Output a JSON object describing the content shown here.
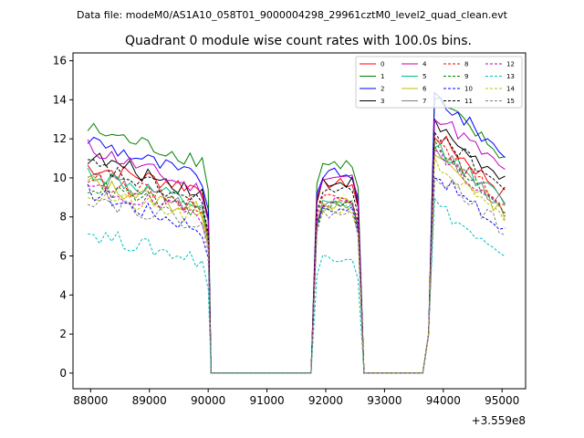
{
  "chart_data": {
    "type": "line",
    "suptitle": "Data file: modeM0/AS1A10_058T01_9000004298_29961cztM0_level2_quad_clean.evt",
    "title": "Quadrant 0 module wise count rates with 100.0s bins.",
    "xlabel": "",
    "ylabel": "",
    "x_offset_label": "+3.559e8",
    "xlim": [
      87700,
      95400
    ],
    "ylim": [
      -0.8,
      16.4
    ],
    "x_ticks": [
      88000,
      89000,
      90000,
      91000,
      92000,
      93000,
      94000,
      95000
    ],
    "x_tick_labels": [
      "88000",
      "89000",
      "90000",
      "91000",
      "92000",
      "93000",
      "94000",
      "95000"
    ],
    "y_ticks": [
      0,
      2,
      4,
      6,
      8,
      10,
      12,
      14,
      16
    ],
    "y_tick_labels": [
      "0",
      "2",
      "4",
      "6",
      "8",
      "10",
      "12",
      "14",
      "16"
    ],
    "legend_position": "top-right",
    "segments": [
      {
        "start": 87950,
        "end": 90000,
        "n": 21
      },
      {
        "start": 90050,
        "end": 91750,
        "n": 18,
        "zero": true
      },
      {
        "start": 91850,
        "end": 92550,
        "n": 8
      },
      {
        "start": 92650,
        "end": 93650,
        "n": 11,
        "zero": true
      },
      {
        "start": 93750,
        "end": 95050,
        "n": 14
      }
    ],
    "series": [
      {
        "name": "0",
        "color": "#ff0000",
        "dashed": false,
        "levels": [
          10.6,
          9.4,
          9.7,
          12.5
        ]
      },
      {
        "name": "1",
        "color": "#008000",
        "dashed": false,
        "levels": [
          12.5,
          10.8,
          10.7,
          14.3
        ]
      },
      {
        "name": "2",
        "color": "#0000ff",
        "dashed": false,
        "levels": [
          12.0,
          9.8,
          10.2,
          14.5
        ]
      },
      {
        "name": "3",
        "color": "#000000",
        "dashed": false,
        "levels": [
          11.1,
          9.2,
          9.8,
          13.0
        ]
      },
      {
        "name": "4",
        "color": "#bf00bf",
        "dashed": false,
        "levels": [
          11.6,
          9.2,
          10.0,
          13.6
        ]
      },
      {
        "name": "5",
        "color": "#00bf80",
        "dashed": false,
        "levels": [
          10.3,
          8.4,
          8.6,
          12.0
        ]
      },
      {
        "name": "6",
        "color": "#bfbf00",
        "dashed": false,
        "levels": [
          9.8,
          8.2,
          8.7,
          11.5
        ]
      },
      {
        "name": "7",
        "color": "#808080",
        "dashed": false,
        "levels": [
          10.1,
          8.3,
          8.8,
          11.8
        ]
      },
      {
        "name": "8",
        "color": "#ff0000",
        "dashed": true,
        "levels": [
          10.0,
          8.5,
          9.0,
          12.0
        ]
      },
      {
        "name": "9",
        "color": "#008000",
        "dashed": true,
        "levels": [
          9.6,
          8.2,
          8.6,
          11.8
        ]
      },
      {
        "name": "10",
        "color": "#0000ff",
        "dashed": true,
        "levels": [
          9.3,
          7.3,
          8.4,
          10.5
        ]
      },
      {
        "name": "11",
        "color": "#000000",
        "dashed": true,
        "levels": [
          10.7,
          8.6,
          9.3,
          12.7
        ]
      },
      {
        "name": "12",
        "color": "#bf00bf",
        "dashed": true,
        "levels": [
          9.5,
          8.0,
          8.8,
          11.6
        ]
      },
      {
        "name": "13",
        "color": "#00bfbf",
        "dashed": true,
        "levels": [
          7.2,
          5.7,
          6.0,
          9.0
        ]
      },
      {
        "name": "14",
        "color": "#bfbf00",
        "dashed": true,
        "levels": [
          9.2,
          7.8,
          8.4,
          11.0
        ]
      },
      {
        "name": "15",
        "color": "#808080",
        "dashed": true,
        "levels": [
          9.0,
          7.6,
          8.2,
          10.6
        ]
      }
    ]
  }
}
